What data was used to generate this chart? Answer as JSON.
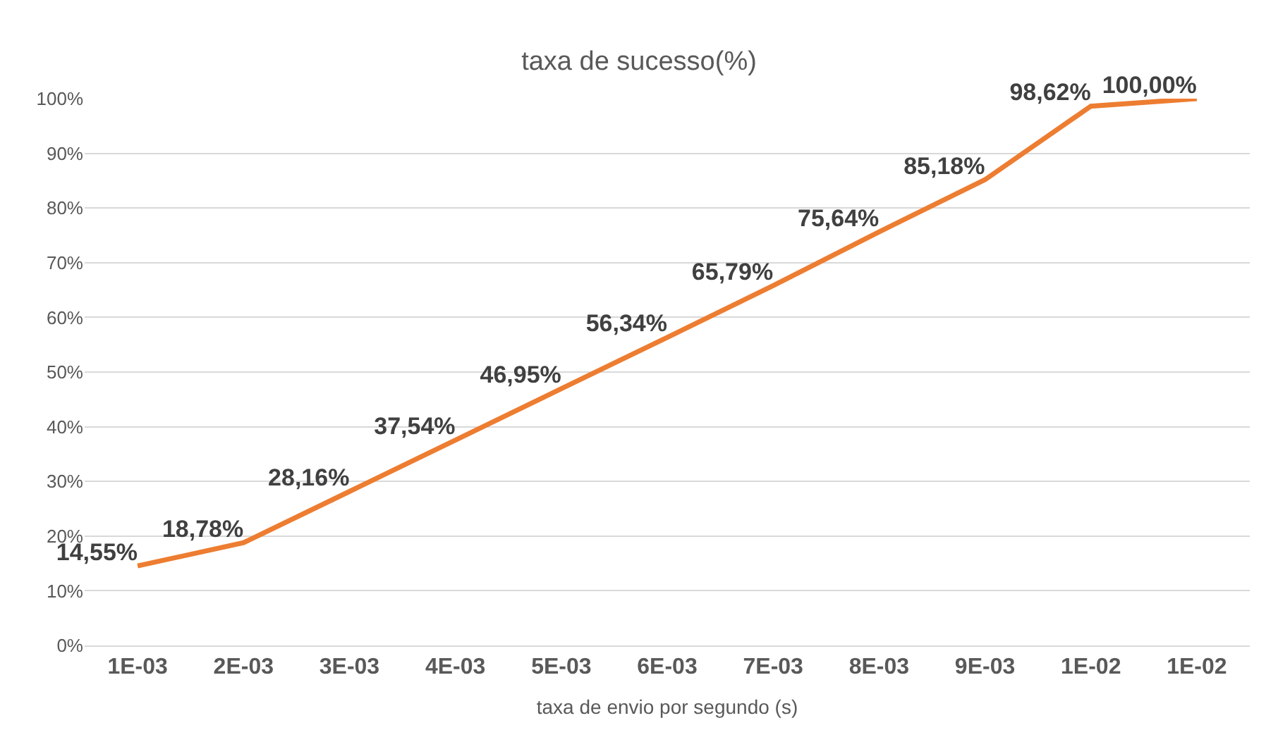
{
  "chart_data": {
    "type": "line",
    "title": "taxa de sucesso(%)",
    "xlabel": "taxa de envio por segundo (s)",
    "categories": [
      "1E-03",
      "2E-03",
      "3E-03",
      "4E-03",
      "5E-03",
      "6E-03",
      "7E-03",
      "8E-03",
      "9E-03",
      "1E-02",
      "1E-02"
    ],
    "series": [
      {
        "color": "#ed7d31",
        "values": [
          14.55,
          18.78,
          28.16,
          37.54,
          46.95,
          56.34,
          65.79,
          75.64,
          85.18,
          98.62,
          100.0
        ],
        "value_labels": [
          "14,55%",
          "18,78%",
          "28,16%",
          "37,54%",
          "46,95%",
          "56,34%",
          "65,79%",
          "75,64%",
          "85,18%",
          "98,62%",
          "100,00%"
        ]
      }
    ],
    "ylim": [
      0,
      100
    ],
    "yticks": [
      {
        "value": 0,
        "label": "0%"
      },
      {
        "value": 10,
        "label": "10%"
      },
      {
        "value": 20,
        "label": "20%"
      },
      {
        "value": 30,
        "label": "30%"
      },
      {
        "value": 40,
        "label": "40%"
      },
      {
        "value": 50,
        "label": "50%"
      },
      {
        "value": 60,
        "label": "60%"
      },
      {
        "value": 70,
        "label": "70%"
      },
      {
        "value": 80,
        "label": "80%"
      },
      {
        "value": 90,
        "label": "90%"
      },
      {
        "value": 100,
        "label": "100%"
      }
    ],
    "grid": "y",
    "marker": "none",
    "line_style": "solid"
  }
}
